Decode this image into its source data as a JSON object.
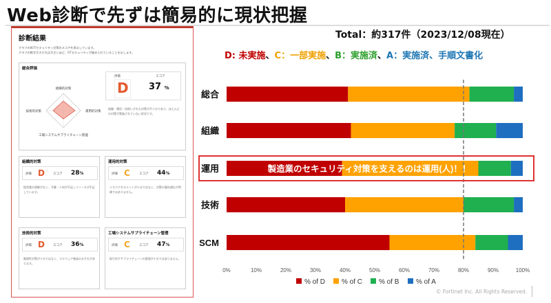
{
  "title": "Web診断で先ずは簡易的に現状把握",
  "report": {
    "title": "診断結果",
    "desc_line1": "グラフの8OTセキュリティ対策のスコアを表示しています。",
    "desc_line2": "グラフの数字大きければ大きいほど、OTセキュリティが進められていることを示します。",
    "overall": {
      "heading": "総合評価",
      "radar_labels": [
        "組織的対策",
        "運用的対策",
        "技術的対策",
        "工場システムサプライチェーン管理"
      ],
      "grade_label": "評価",
      "grade": "D",
      "score_label": "スコア",
      "score": "37",
      "unit": "%",
      "comment": "組織・運用・技術いずれも対策が不十分であり、ほとんどの対策が実施されていない状況です。"
    },
    "sections": [
      {
        "heading": "組織的対策",
        "grade_label": "評価",
        "grade": "D",
        "score_label": "スコア",
        "score": "28",
        "unit": "%",
        "comment": "経営層の理解がなく、予算・人材が不足しリソースが不足しています。"
      },
      {
        "heading": "運用的対策",
        "grade_label": "評価",
        "grade": "C",
        "score_label": "スコア",
        "score": "44",
        "unit": "%",
        "comment": "リスクアセスメントが十分ではなく、対策の優先順位が明確ではありません。"
      },
      {
        "heading": "技術的対策",
        "grade_label": "評価",
        "grade": "D",
        "score_label": "スコア",
        "score": "36",
        "unit": "%",
        "comment": "脆弱性対策が十分ではなく、マルウェア感染のおそれがあります。"
      },
      {
        "heading": "工場システムサプライチェーン管理",
        "grade_label": "評価",
        "grade": "C",
        "score_label": "スコア",
        "score": "47",
        "unit": "%",
        "comment": "取引先やサプライチェーンの管理が十分ではありません。"
      }
    ]
  },
  "total_text": "Total：約317件（2023/12/08現在）",
  "grade_legend": {
    "D": "D: 未実施",
    "C": "C：一部実施",
    "B": "B：実施済",
    "A": "A：実施済、手順文書化",
    "sep": "、"
  },
  "colors": {
    "D": "#c00000",
    "C": "#ffa200",
    "B": "#20b050",
    "A": "#1f6fc0",
    "highlight": "#e03030",
    "overlay_text": "#ffffff"
  },
  "chart_data": {
    "type": "bar",
    "orientation": "horizontal",
    "stacked": true,
    "categories": [
      "総合",
      "組織",
      "運用",
      "技術",
      "SCM"
    ],
    "series": [
      {
        "name": "% of D",
        "values": [
          41,
          42,
          39,
          40,
          55
        ]
      },
      {
        "name": "% of C",
        "values": [
          41,
          35,
          46,
          40,
          29
        ]
      },
      {
        "name": "% of B",
        "values": [
          15,
          14,
          11,
          17,
          11
        ]
      },
      {
        "name": "% of A",
        "values": [
          3,
          9,
          4,
          3,
          5
        ]
      }
    ],
    "xlim": [
      0,
      100
    ],
    "xticks": [
      "0%",
      "10%",
      "20%",
      "30%",
      "40%",
      "50%",
      "60%",
      "70%",
      "80%",
      "90%",
      "100%"
    ],
    "reference_line": 80,
    "highlight_category": "運用",
    "annotation": "製造業のセキュリティ対策を支えるのは運用(人)！！",
    "legend_position": "bottom"
  },
  "footer": "© Fortinet Inc. All Rights Reserved."
}
